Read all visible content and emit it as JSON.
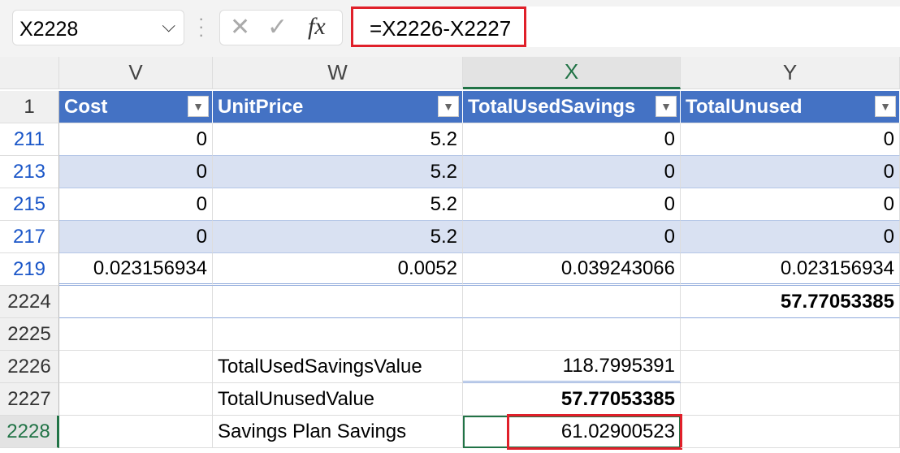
{
  "name_box": "X2228",
  "formula": "=X2226-X2227",
  "icons": {
    "cancel": "✕",
    "enter": "✓",
    "fx": "fx"
  },
  "columns": [
    "V",
    "W",
    "X",
    "Y"
  ],
  "header_row": "1",
  "headers": [
    "Cost",
    "UnitPrice",
    "TotalUsedSavings",
    "TotalUnused"
  ],
  "rows": [
    {
      "n": "211",
      "v": [
        "0",
        "5.2",
        "0",
        "0"
      ]
    },
    {
      "n": "213",
      "v": [
        "0",
        "5.2",
        "0",
        "0"
      ]
    },
    {
      "n": "215",
      "v": [
        "0",
        "5.2",
        "0",
        "0"
      ]
    },
    {
      "n": "217",
      "v": [
        "0",
        "5.2",
        "0",
        "0"
      ]
    },
    {
      "n": "219",
      "v": [
        "0.023156934",
        "0.0052",
        "0.039243066",
        "0.023156934"
      ]
    },
    {
      "n": "2224",
      "v": [
        "",
        "",
        "",
        "57.77053385"
      ]
    },
    {
      "n": "2225",
      "v": [
        "",
        "",
        "",
        ""
      ]
    },
    {
      "n": "2226",
      "v": [
        "",
        "TotalUsedSavingsValue",
        "118.7995391",
        ""
      ]
    },
    {
      "n": "2227",
      "v": [
        "",
        "TotalUnusedValue",
        "57.77053385",
        ""
      ]
    },
    {
      "n": "2228",
      "v": [
        "",
        "Savings Plan Savings",
        "61.02900523",
        ""
      ]
    }
  ],
  "colors": {
    "header": "#4472c4",
    "band": "#d9e1f2",
    "highlight": "#e0202a",
    "selection": "#217346"
  }
}
